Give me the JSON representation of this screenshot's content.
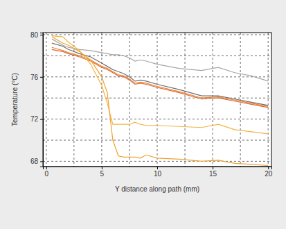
{
  "chart_data": {
    "type": "line",
    "xlabel": "Y distance along path (mm)",
    "ylabel": "Temperature (°C)",
    "x": [
      0.5,
      1.5,
      2,
      3,
      4,
      5,
      5.5,
      6,
      6.5,
      7,
      7.5,
      8,
      8.5,
      9,
      10,
      12,
      14,
      15.5,
      17,
      18.5,
      20
    ],
    "series": [
      {
        "color": "#a6a6a6",
        "values": [
          79.6,
          79.0,
          78.8,
          78.6,
          78.5,
          78.3,
          78.2,
          78.1,
          78.1,
          78.0,
          77.8,
          77.5,
          77.6,
          77.5,
          77.2,
          76.8,
          76.6,
          76.9,
          76.4,
          76.1,
          75.6
        ]
      },
      {
        "color": "#6e6e6e",
        "values": [
          79.2,
          78.9,
          78.6,
          78.2,
          77.9,
          77.3,
          77.0,
          76.7,
          76.5,
          76.3,
          76.0,
          75.6,
          75.7,
          75.6,
          75.3,
          74.8,
          74.2,
          74.2,
          73.9,
          73.6,
          73.3
        ]
      },
      {
        "color": "#e8833a",
        "values": [
          78.8,
          78.5,
          78.3,
          78.0,
          77.6,
          77.0,
          76.8,
          76.5,
          76.2,
          76.1,
          75.8,
          75.4,
          75.5,
          75.4,
          75.1,
          74.6,
          74.0,
          74.1,
          73.8,
          73.5,
          73.2
        ]
      },
      {
        "color": "#e06a2a",
        "values": [
          78.6,
          78.4,
          78.2,
          77.9,
          77.5,
          76.9,
          76.7,
          76.4,
          76.1,
          76.0,
          75.7,
          75.3,
          75.4,
          75.3,
          75.0,
          74.5,
          73.9,
          74.0,
          73.7,
          73.4,
          73.1
        ]
      },
      {
        "color": "#f2b441",
        "values": [
          79.9,
          79.8,
          79.3,
          78.5,
          77.2,
          75.2,
          73.5,
          71.5,
          71.5,
          71.5,
          71.5,
          71.7,
          71.5,
          71.4,
          71.4,
          71.3,
          71.2,
          71.5,
          71.0,
          70.8,
          70.6
        ]
      },
      {
        "color": "#f0a030",
        "values": [
          79.8,
          79.2,
          79.0,
          78.4,
          77.6,
          76.0,
          74.5,
          70.0,
          68.5,
          68.4,
          68.4,
          68.4,
          68.3,
          68.6,
          68.3,
          68.2,
          68.0,
          68.1,
          67.8,
          67.7,
          67.6
        ]
      }
    ],
    "xlim": [
      -0.3,
      20.3
    ],
    "ylim": [
      67.5,
      80.2
    ],
    "xticks": [
      0,
      5,
      10,
      15,
      20
    ],
    "yticks": [
      68,
      72,
      76,
      80
    ],
    "grid": true
  }
}
